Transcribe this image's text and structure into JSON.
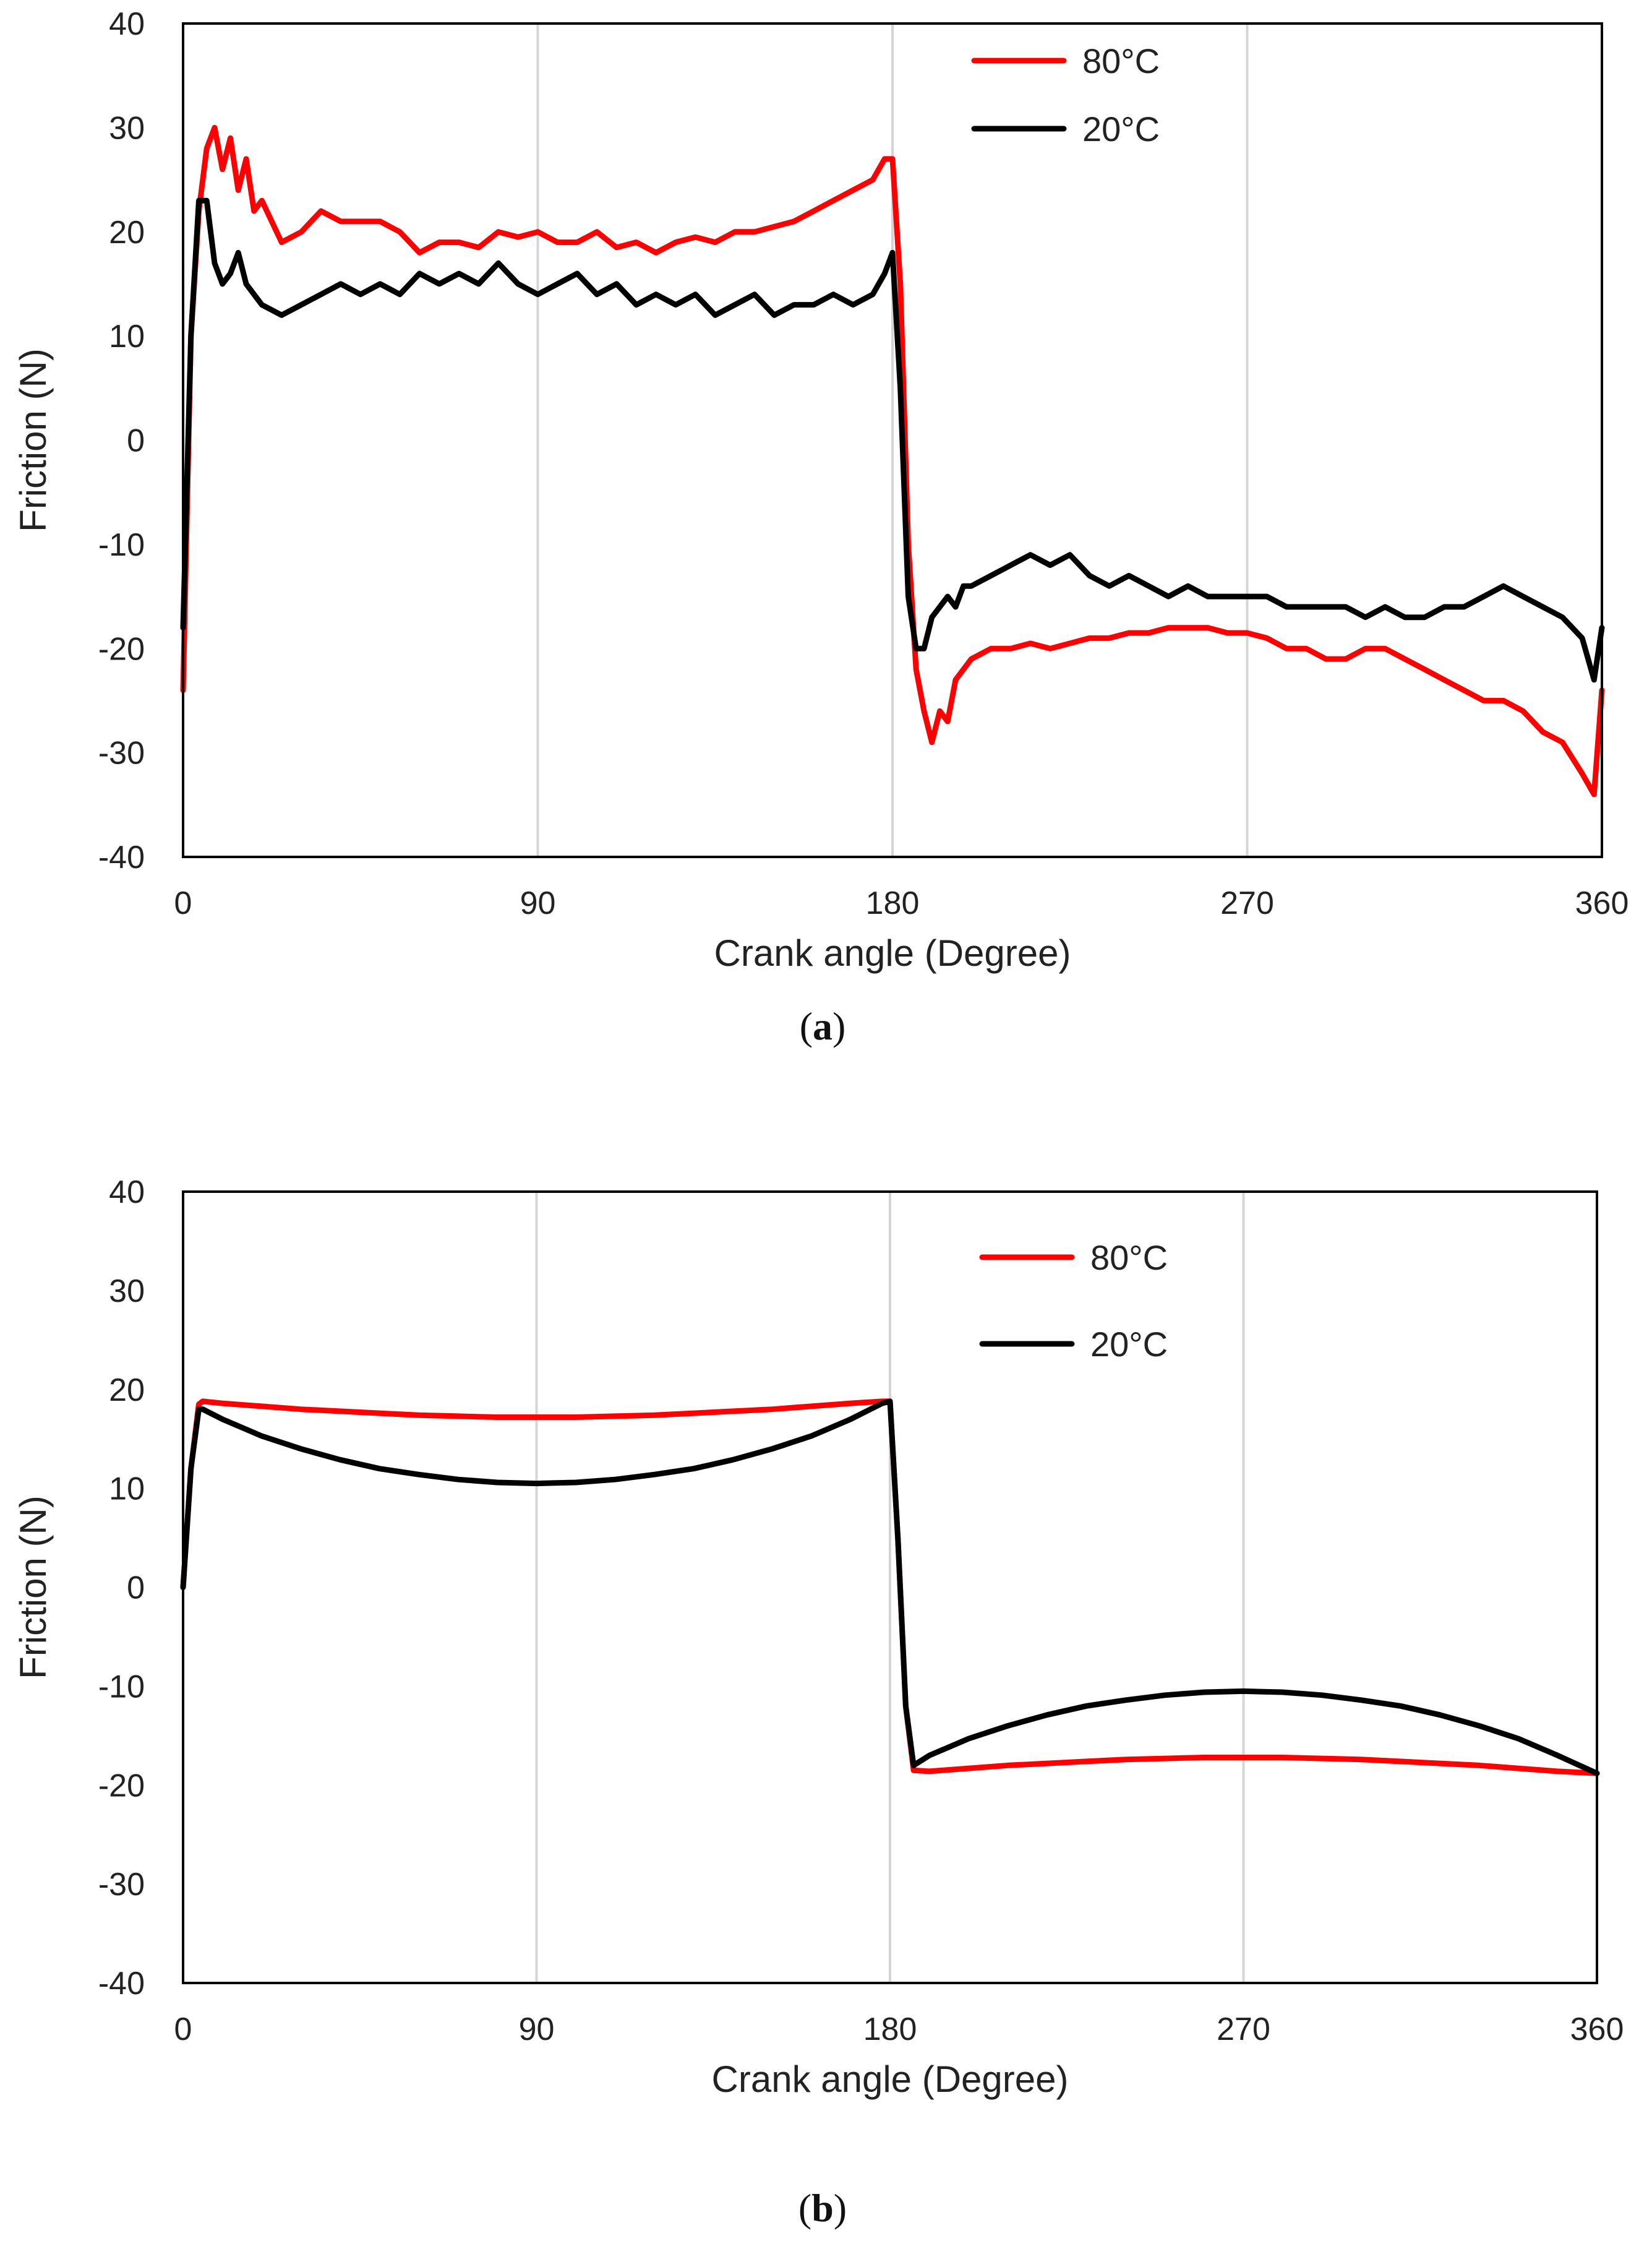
{
  "chart_data": [
    {
      "type": "line",
      "panel": "a",
      "xlabel": "Crank angle (Degree)",
      "ylabel": "Friction (N)",
      "xlim": [
        0,
        360
      ],
      "ylim": [
        -40,
        40
      ],
      "xticks": [
        0,
        90,
        180,
        270,
        360
      ],
      "yticks": [
        40,
        30,
        20,
        10,
        0,
        -10,
        -20,
        -30,
        -40
      ],
      "grid": "vertical",
      "legend": "top-right",
      "series": [
        {
          "name": "80°C",
          "color": "#ff0000",
          "x": [
            0,
            2,
            4,
            6,
            8,
            10,
            12,
            14,
            16,
            18,
            20,
            25,
            30,
            35,
            40,
            45,
            50,
            55,
            60,
            65,
            70,
            75,
            80,
            85,
            90,
            95,
            100,
            105,
            110,
            115,
            120,
            125,
            130,
            135,
            140,
            145,
            150,
            155,
            160,
            165,
            170,
            175,
            178,
            180,
            182,
            184,
            186,
            188,
            190,
            192,
            194,
            196,
            198,
            200,
            205,
            210,
            215,
            220,
            225,
            230,
            235,
            240,
            245,
            250,
            255,
            260,
            265,
            270,
            275,
            280,
            285,
            290,
            295,
            300,
            305,
            310,
            315,
            320,
            325,
            330,
            335,
            340,
            345,
            350,
            355,
            358,
            360
          ],
          "y": [
            -24,
            10,
            22,
            28,
            30,
            26,
            29,
            24,
            27,
            22,
            23,
            19,
            20,
            22,
            21,
            21,
            21,
            20,
            18,
            19,
            19,
            18.5,
            20,
            19.5,
            20,
            19,
            19,
            20,
            18.5,
            19,
            18,
            19,
            19.5,
            19,
            20,
            20,
            20.5,
            21,
            22,
            23,
            24,
            25,
            27,
            27,
            15,
            -10,
            -22,
            -26,
            -29,
            -26,
            -27,
            -23,
            -22,
            -21,
            -20,
            -20,
            -19.5,
            -20,
            -19.5,
            -19,
            -19,
            -18.5,
            -18.5,
            -18,
            -18,
            -18,
            -18.5,
            -18.5,
            -19,
            -20,
            -20,
            -21,
            -21,
            -20,
            -20,
            -21,
            -22,
            -23,
            -24,
            -25,
            -25,
            -26,
            -28,
            -29,
            -32,
            -34,
            -24
          ]
        },
        {
          "name": "20°C",
          "color": "#000000",
          "x": [
            0,
            2,
            4,
            6,
            8,
            10,
            12,
            14,
            16,
            18,
            20,
            25,
            30,
            35,
            40,
            45,
            50,
            55,
            60,
            65,
            70,
            75,
            80,
            85,
            90,
            95,
            100,
            105,
            110,
            115,
            120,
            125,
            130,
            135,
            140,
            145,
            150,
            155,
            160,
            165,
            170,
            175,
            178,
            180,
            182,
            184,
            186,
            188,
            190,
            192,
            194,
            196,
            198,
            200,
            205,
            210,
            215,
            220,
            225,
            230,
            235,
            240,
            245,
            250,
            255,
            260,
            265,
            270,
            275,
            280,
            285,
            290,
            295,
            300,
            305,
            310,
            315,
            320,
            325,
            330,
            335,
            340,
            345,
            350,
            355,
            358,
            360
          ],
          "y": [
            -18,
            10,
            23,
            23,
            17,
            15,
            16,
            18,
            15,
            14,
            13,
            12,
            13,
            14,
            15,
            14,
            15,
            14,
            16,
            15,
            16,
            15,
            17,
            15,
            14,
            15,
            16,
            14,
            15,
            13,
            14,
            13,
            14,
            12,
            13,
            14,
            12,
            13,
            13,
            14,
            13,
            14,
            16,
            18,
            5,
            -15,
            -20,
            -20,
            -17,
            -16,
            -15,
            -16,
            -14,
            -14,
            -13,
            -12,
            -11,
            -12,
            -11,
            -13,
            -14,
            -13,
            -14,
            -15,
            -14,
            -15,
            -15,
            -15,
            -15,
            -16,
            -16,
            -16,
            -16,
            -17,
            -16,
            -17,
            -17,
            -16,
            -16,
            -15,
            -14,
            -15,
            -16,
            -17,
            -19,
            -23,
            -18
          ]
        }
      ]
    },
    {
      "type": "line",
      "panel": "b",
      "xlabel": "Crank angle (Degree)",
      "ylabel": "Friction (N)",
      "xlim": [
        0,
        360
      ],
      "ylim": [
        -40,
        40
      ],
      "xticks": [
        0,
        90,
        180,
        270,
        360
      ],
      "yticks": [
        40,
        30,
        20,
        10,
        0,
        -10,
        -20,
        -30,
        -40
      ],
      "grid": "vertical",
      "legend": "top-right",
      "series": [
        {
          "name": "80°C",
          "color": "#ff0000",
          "x": [
            0,
            2,
            4,
            5,
            10,
            20,
            30,
            40,
            50,
            60,
            70,
            80,
            90,
            100,
            110,
            120,
            130,
            140,
            150,
            160,
            170,
            178,
            180,
            182,
            184,
            186,
            190,
            200,
            210,
            220,
            230,
            240,
            250,
            260,
            270,
            280,
            290,
            300,
            310,
            320,
            330,
            340,
            350,
            360
          ],
          "y": [
            0,
            12,
            18.5,
            18.8,
            18.6,
            18.3,
            18.0,
            17.8,
            17.6,
            17.4,
            17.3,
            17.2,
            17.2,
            17.2,
            17.3,
            17.4,
            17.6,
            17.8,
            18.0,
            18.3,
            18.6,
            18.8,
            18.8,
            5,
            -12,
            -18.5,
            -18.6,
            -18.3,
            -18.0,
            -17.8,
            -17.6,
            -17.4,
            -17.3,
            -17.2,
            -17.2,
            -17.2,
            -17.3,
            -17.4,
            -17.6,
            -17.8,
            -18.0,
            -18.3,
            -18.6,
            -18.8
          ]
        },
        {
          "name": "20°C",
          "color": "#000000",
          "x": [
            0,
            2,
            4,
            5,
            10,
            20,
            30,
            40,
            50,
            60,
            70,
            80,
            90,
            100,
            110,
            120,
            130,
            140,
            150,
            160,
            170,
            178,
            180,
            182,
            184,
            186,
            190,
            200,
            210,
            220,
            230,
            240,
            250,
            260,
            270,
            280,
            290,
            300,
            310,
            320,
            330,
            340,
            350,
            360
          ],
          "y": [
            0,
            12,
            18,
            18,
            17.0,
            15.3,
            14.0,
            12.9,
            12.0,
            11.4,
            10.9,
            10.6,
            10.5,
            10.6,
            10.9,
            11.4,
            12.0,
            12.9,
            14.0,
            15.3,
            17.0,
            18.6,
            18.8,
            5,
            -12,
            -18,
            -17.0,
            -15.3,
            -14.0,
            -12.9,
            -12.0,
            -11.4,
            -10.9,
            -10.6,
            -10.5,
            -10.6,
            -10.9,
            -11.4,
            -12.0,
            -12.9,
            -14.0,
            -15.3,
            -17.0,
            -18.8
          ]
        }
      ]
    }
  ],
  "panels": [
    {
      "label_open": "(",
      "label_letter": "a",
      "label_close": ")"
    },
    {
      "label_open": "(",
      "label_letter": "b",
      "label_close": ")"
    }
  ]
}
